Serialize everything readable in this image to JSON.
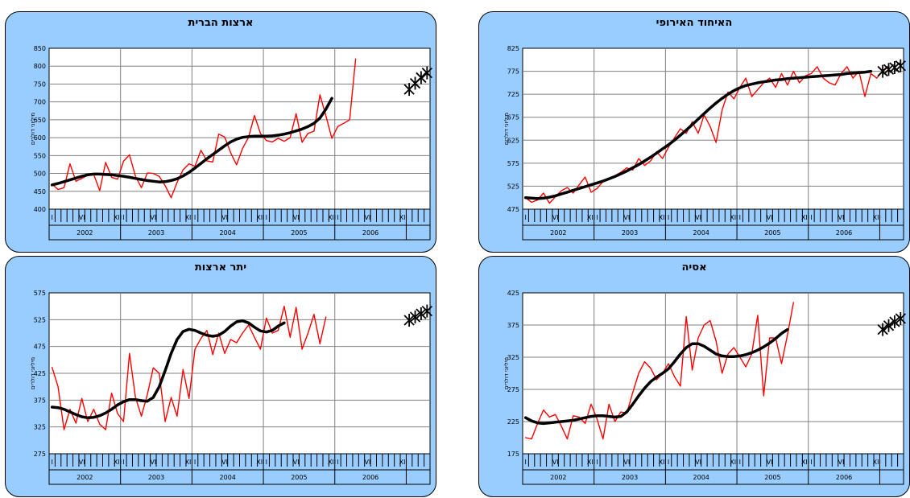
{
  "chart_data": [
    {
      "type": "line",
      "title": "האיחוד האירופי",
      "ylabel": "מיליוני דולרים",
      "ylim": [
        475,
        825
      ],
      "yticks": [
        475,
        525,
        575,
        625,
        675,
        725,
        775,
        825
      ],
      "years": [
        "2002",
        "2003",
        "2004",
        "2005",
        "2006"
      ],
      "month_labels": [
        "I",
        "VI",
        "XII"
      ],
      "series": [
        {
          "role": "actual",
          "color": "#ff0000",
          "values": [
            500,
            490,
            495,
            510,
            488,
            502,
            515,
            522,
            510,
            528,
            545,
            512,
            520,
            535,
            540,
            548,
            555,
            565,
            560,
            585,
            570,
            580,
            600,
            585,
            610,
            630,
            650,
            640,
            665,
            640,
            680,
            655,
            620,
            690,
            730,
            715,
            740,
            760,
            720,
            735,
            750,
            760,
            740,
            770,
            745,
            775,
            750,
            765,
            770,
            785,
            760,
            750,
            745,
            770,
            785,
            760,
            775,
            720,
            770,
            760,
            775,
            785
          ]
        },
        {
          "role": "trend",
          "color": "#000000",
          "values": [
            500,
            499,
            498,
            499,
            501,
            504,
            508,
            512,
            516,
            520,
            524,
            528,
            532,
            536,
            541,
            546,
            552,
            558,
            565,
            572,
            580,
            588,
            597,
            606,
            615,
            625,
            636,
            647,
            659,
            671,
            683,
            695,
            706,
            716,
            725,
            733,
            739,
            744,
            747,
            750,
            752,
            754,
            756,
            757,
            759,
            760,
            761,
            762,
            763,
            764,
            765,
            766,
            767,
            768,
            770,
            771,
            772,
            773,
            775
          ]
        },
        {
          "role": "forecast",
          "color": "#000000",
          "values": [
            775,
            779,
            783,
            787
          ]
        }
      ]
    },
    {
      "type": "line",
      "title": "ארצות הברית",
      "ylabel": "מיליוני דולרים",
      "ylim": [
        400,
        850
      ],
      "yticks": [
        400,
        450,
        500,
        550,
        600,
        650,
        700,
        750,
        800,
        850
      ],
      "years": [
        "2002",
        "2003",
        "2004",
        "2005",
        "2006"
      ],
      "month_labels": [
        "I",
        "VI",
        "XII"
      ],
      "series": [
        {
          "role": "actual",
          "color": "#ff0000",
          "values": [
            470,
            455,
            460,
            527,
            478,
            486,
            495,
            497,
            452,
            531,
            489,
            484,
            534,
            552,
            492,
            460,
            501,
            500,
            492,
            466,
            432,
            475,
            510,
            527,
            520,
            565,
            535,
            532,
            610,
            602,
            558,
            524,
            570,
            601,
            662,
            612,
            592,
            588,
            598,
            590,
            600,
            667,
            587,
            612,
            618,
            720,
            661,
            598,
            631,
            640,
            650,
            820
          ]
        },
        {
          "role": "trend",
          "color": "#000000",
          "values": [
            468,
            472,
            477,
            482,
            487,
            492,
            496,
            498,
            498,
            497,
            496,
            494,
            492,
            489,
            486,
            483,
            480,
            478,
            476,
            477,
            480,
            485,
            493,
            503,
            515,
            528,
            541,
            553,
            565,
            577,
            588,
            596,
            601,
            603,
            604,
            604,
            604,
            605,
            607,
            610,
            614,
            619,
            624,
            631,
            640,
            655,
            680,
            710
          ]
        },
        {
          "role": "forecast",
          "color": "#000000",
          "values": [
            735,
            752,
            768,
            781
          ]
        }
      ]
    },
    {
      "type": "line",
      "title": "אסיה",
      "ylabel": "מיליוני דולרים",
      "ylim": [
        175,
        425
      ],
      "yticks": [
        175,
        225,
        275,
        325,
        375,
        425
      ],
      "years": [
        "2002",
        "2003",
        "2004",
        "2005",
        "2006"
      ],
      "month_labels": [
        "I",
        "VI",
        "XII"
      ],
      "series": [
        {
          "role": "actual",
          "color": "#ff0000",
          "values": [
            200,
            198,
            222,
            243,
            232,
            236,
            218,
            198,
            234,
            232,
            222,
            252,
            229,
            198,
            252,
            225,
            240,
            238,
            270,
            300,
            318,
            308,
            290,
            300,
            315,
            295,
            280,
            388,
            305,
            355,
            375,
            382,
            350,
            300,
            330,
            340,
            325,
            310,
            330,
            390,
            265,
            355,
            355,
            315,
            360,
            410
          ]
        },
        {
          "role": "trend",
          "color": "#000000",
          "values": [
            231,
            226,
            223,
            222,
            223,
            224,
            225,
            226,
            227,
            229,
            231,
            233,
            234,
            234,
            233,
            232,
            233,
            240,
            252,
            265,
            277,
            287,
            294,
            300,
            307,
            318,
            330,
            340,
            346,
            346,
            342,
            336,
            330,
            327,
            326,
            326,
            327,
            329,
            332,
            336,
            341,
            347,
            354,
            362,
            368
          ]
        },
        {
          "role": "forecast",
          "color": "#000000",
          "values": [
            368,
            374,
            380,
            385
          ]
        }
      ]
    },
    {
      "type": "line",
      "title": "יתר ארצות",
      "ylabel": "מיליוני דולרים",
      "ylim": [
        275,
        575
      ],
      "yticks": [
        275,
        325,
        375,
        425,
        475,
        525,
        575
      ],
      "years": [
        "2002",
        "2003",
        "2004",
        "2005",
        "2006"
      ],
      "month_labels": [
        "I",
        "VI",
        "XII"
      ],
      "series": [
        {
          "role": "actual",
          "color": "#ff0000",
          "values": [
            436,
            400,
            320,
            358,
            332,
            378,
            335,
            358,
            330,
            320,
            388,
            350,
            335,
            462,
            380,
            345,
            385,
            435,
            425,
            335,
            380,
            345,
            432,
            378,
            470,
            490,
            505,
            460,
            500,
            462,
            488,
            482,
            500,
            515,
            492,
            470,
            528,
            500,
            505,
            550,
            492,
            548,
            470,
            500,
            535,
            480,
            530
          ]
        },
        {
          "role": "trend",
          "color": "#000000",
          "values": [
            362,
            361,
            358,
            353,
            348,
            344,
            342,
            343,
            346,
            351,
            358,
            366,
            372,
            376,
            376,
            374,
            373,
            380,
            400,
            430,
            462,
            488,
            503,
            507,
            505,
            500,
            496,
            494,
            496,
            503,
            513,
            521,
            523,
            519,
            511,
            504,
            502,
            505,
            513,
            519
          ]
        },
        {
          "role": "forecast",
          "color": "#000000",
          "values": [
            524,
            530,
            536,
            541
          ]
        }
      ]
    }
  ]
}
